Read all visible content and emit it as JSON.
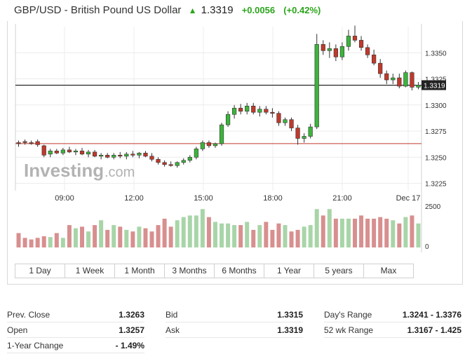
{
  "header": {
    "title": "GBP/USD - British Pound US Dollar",
    "arrow": "▲",
    "price": "1.3319",
    "change": "+0.0056",
    "change_pct": "(+0.42%)"
  },
  "watermark": "Investing.com",
  "colors": {
    "up": "#3cb43c",
    "down": "#c0392b",
    "volume_up": "#a8d5a8",
    "volume_down": "#d88f8f",
    "prev_close_line": "#c0392b",
    "last_line": "#000000"
  },
  "chart_data": {
    "type": "candlestick",
    "instrument": "GBP/USD",
    "x_ticks": [
      "09:00",
      "12:00",
      "15:00",
      "18:00",
      "21:00",
      "Dec 17"
    ],
    "y_ticks": [
      "1.3350",
      "1.3325",
      "1.3300",
      "1.3275",
      "1.3250",
      "1.3225"
    ],
    "y_range": [
      1.3218,
      1.3375
    ],
    "last_price_label": "1.3319",
    "last_price": 1.3319,
    "prev_close_line": 1.3263,
    "volume_axis_labels": [
      "2500",
      "0"
    ],
    "volume_max": 2500,
    "candles": [
      {
        "o": 1.3264,
        "h": 1.3266,
        "l": 1.326,
        "c": 1.3263
      },
      {
        "o": 1.3265,
        "h": 1.3267,
        "l": 1.3262,
        "c": 1.3264
      },
      {
        "o": 1.3264,
        "h": 1.3266,
        "l": 1.3262,
        "c": 1.3263
      },
      {
        "o": 1.3265,
        "h": 1.3267,
        "l": 1.326,
        "c": 1.3262
      },
      {
        "o": 1.3261,
        "h": 1.3262,
        "l": 1.325,
        "c": 1.3252
      },
      {
        "o": 1.3253,
        "h": 1.3258,
        "l": 1.325,
        "c": 1.3256
      },
      {
        "o": 1.3256,
        "h": 1.3258,
        "l": 1.3253,
        "c": 1.3254
      },
      {
        "o": 1.3254,
        "h": 1.3259,
        "l": 1.3252,
        "c": 1.3257
      },
      {
        "o": 1.3257,
        "h": 1.326,
        "l": 1.3254,
        "c": 1.3255
      },
      {
        "o": 1.3255,
        "h": 1.3258,
        "l": 1.3252,
        "c": 1.3256
      },
      {
        "o": 1.3256,
        "h": 1.3259,
        "l": 1.3252,
        "c": 1.3253
      },
      {
        "o": 1.3253,
        "h": 1.3257,
        "l": 1.325,
        "c": 1.3255
      },
      {
        "o": 1.3255,
        "h": 1.3257,
        "l": 1.325,
        "c": 1.3251
      },
      {
        "o": 1.3251,
        "h": 1.3254,
        "l": 1.3248,
        "c": 1.3252
      },
      {
        "o": 1.3252,
        "h": 1.3254,
        "l": 1.3249,
        "c": 1.325
      },
      {
        "o": 1.325,
        "h": 1.3254,
        "l": 1.3248,
        "c": 1.3252
      },
      {
        "o": 1.3252,
        "h": 1.3255,
        "l": 1.3249,
        "c": 1.3251
      },
      {
        "o": 1.3251,
        "h": 1.3255,
        "l": 1.3248,
        "c": 1.3253
      },
      {
        "o": 1.3253,
        "h": 1.3256,
        "l": 1.325,
        "c": 1.3252
      },
      {
        "o": 1.3252,
        "h": 1.3255,
        "l": 1.3249,
        "c": 1.3254
      },
      {
        "o": 1.3254,
        "h": 1.3256,
        "l": 1.325,
        "c": 1.3251
      },
      {
        "o": 1.3251,
        "h": 1.3254,
        "l": 1.3246,
        "c": 1.3248
      },
      {
        "o": 1.3248,
        "h": 1.325,
        "l": 1.3243,
        "c": 1.3245
      },
      {
        "o": 1.3245,
        "h": 1.3247,
        "l": 1.3241,
        "c": 1.3243
      },
      {
        "o": 1.3243,
        "h": 1.3246,
        "l": 1.3241,
        "c": 1.3242
      },
      {
        "o": 1.3242,
        "h": 1.3246,
        "l": 1.324,
        "c": 1.3245
      },
      {
        "o": 1.3245,
        "h": 1.3249,
        "l": 1.3243,
        "c": 1.3247
      },
      {
        "o": 1.3247,
        "h": 1.3252,
        "l": 1.3245,
        "c": 1.325
      },
      {
        "o": 1.325,
        "h": 1.326,
        "l": 1.3248,
        "c": 1.3258
      },
      {
        "o": 1.3258,
        "h": 1.3266,
        "l": 1.3256,
        "c": 1.3264
      },
      {
        "o": 1.3264,
        "h": 1.3266,
        "l": 1.3259,
        "c": 1.3261
      },
      {
        "o": 1.3261,
        "h": 1.3264,
        "l": 1.3259,
        "c": 1.3263
      },
      {
        "o": 1.3263,
        "h": 1.3283,
        "l": 1.3261,
        "c": 1.3281
      },
      {
        "o": 1.3281,
        "h": 1.3294,
        "l": 1.3279,
        "c": 1.3291
      },
      {
        "o": 1.3291,
        "h": 1.33,
        "l": 1.3287,
        "c": 1.3297
      },
      {
        "o": 1.3297,
        "h": 1.3301,
        "l": 1.3291,
        "c": 1.3294
      },
      {
        "o": 1.3294,
        "h": 1.3302,
        "l": 1.3291,
        "c": 1.3299
      },
      {
        "o": 1.3299,
        "h": 1.3302,
        "l": 1.3291,
        "c": 1.3293
      },
      {
        "o": 1.3293,
        "h": 1.3299,
        "l": 1.3289,
        "c": 1.3296
      },
      {
        "o": 1.3296,
        "h": 1.3299,
        "l": 1.3291,
        "c": 1.3293
      },
      {
        "o": 1.3293,
        "h": 1.3297,
        "l": 1.3288,
        "c": 1.3292
      },
      {
        "o": 1.3292,
        "h": 1.3294,
        "l": 1.328,
        "c": 1.3283
      },
      {
        "o": 1.3283,
        "h": 1.3288,
        "l": 1.328,
        "c": 1.3286
      },
      {
        "o": 1.3286,
        "h": 1.3288,
        "l": 1.3275,
        "c": 1.3278
      },
      {
        "o": 1.3278,
        "h": 1.3281,
        "l": 1.3262,
        "c": 1.3268
      },
      {
        "o": 1.3268,
        "h": 1.3273,
        "l": 1.3264,
        "c": 1.327
      },
      {
        "o": 1.327,
        "h": 1.3282,
        "l": 1.3268,
        "c": 1.3279
      },
      {
        "o": 1.3279,
        "h": 1.3368,
        "l": 1.3277,
        "c": 1.3358
      },
      {
        "o": 1.3358,
        "h": 1.3362,
        "l": 1.3348,
        "c": 1.3352
      },
      {
        "o": 1.3352,
        "h": 1.336,
        "l": 1.3345,
        "c": 1.3354
      },
      {
        "o": 1.3354,
        "h": 1.3358,
        "l": 1.3342,
        "c": 1.3346
      },
      {
        "o": 1.3346,
        "h": 1.336,
        "l": 1.3343,
        "c": 1.3356
      },
      {
        "o": 1.3356,
        "h": 1.3372,
        "l": 1.3352,
        "c": 1.3366
      },
      {
        "o": 1.3366,
        "h": 1.3376,
        "l": 1.336,
        "c": 1.3362
      },
      {
        "o": 1.3362,
        "h": 1.3366,
        "l": 1.3352,
        "c": 1.3355
      },
      {
        "o": 1.3355,
        "h": 1.3358,
        "l": 1.3345,
        "c": 1.3348
      },
      {
        "o": 1.3348,
        "h": 1.3353,
        "l": 1.3338,
        "c": 1.334
      },
      {
        "o": 1.334,
        "h": 1.3344,
        "l": 1.3326,
        "c": 1.333
      },
      {
        "o": 1.333,
        "h": 1.3333,
        "l": 1.332,
        "c": 1.3324
      },
      {
        "o": 1.3324,
        "h": 1.333,
        "l": 1.332,
        "c": 1.3326
      },
      {
        "o": 1.3326,
        "h": 1.333,
        "l": 1.3316,
        "c": 1.3318
      },
      {
        "o": 1.3318,
        "h": 1.3333,
        "l": 1.3317,
        "c": 1.3331
      },
      {
        "o": 1.3331,
        "h": 1.3332,
        "l": 1.3314,
        "c": 1.3317
      },
      {
        "o": 1.3317,
        "h": 1.3322,
        "l": 1.3315,
        "c": 1.3319
      }
    ],
    "volume": [
      900,
      600,
      500,
      600,
      700,
      650,
      900,
      600,
      1400,
      1200,
      1300,
      1000,
      1400,
      1700,
      1100,
      1400,
      1300,
      1100,
      1000,
      1300,
      1200,
      1000,
      1400,
      1800,
      1300,
      1700,
      1900,
      2000,
      2000,
      2400,
      1900,
      1600,
      1500,
      1500,
      1400,
      1400,
      1600,
      1100,
      1400,
      1600,
      1100,
      1500,
      1400,
      1000,
      1100,
      1300,
      1400,
      2400,
      2000,
      2400,
      1800,
      1800,
      1800,
      1800,
      2000,
      1800,
      1800,
      1900,
      1800,
      1700,
      1500,
      1900,
      2000,
      1500
    ]
  },
  "range_buttons": [
    "1 Day",
    "1 Week",
    "1 Month",
    "3 Months",
    "6 Months",
    "1 Year",
    "5 years",
    "Max"
  ],
  "stats": {
    "col1": [
      {
        "label": "Prev. Close",
        "value": "1.3263"
      },
      {
        "label": "Open",
        "value": "1.3257"
      },
      {
        "label": "1-Year Change",
        "value": "- 1.49%"
      }
    ],
    "col2": [
      {
        "label": "Bid",
        "value": "1.3315"
      },
      {
        "label": "Ask",
        "value": "1.3319"
      }
    ],
    "col3": [
      {
        "label": "Day's Range",
        "value": "1.3241 - 1.3376"
      },
      {
        "label": "52 wk Range",
        "value": "1.3167 - 1.425"
      }
    ]
  }
}
